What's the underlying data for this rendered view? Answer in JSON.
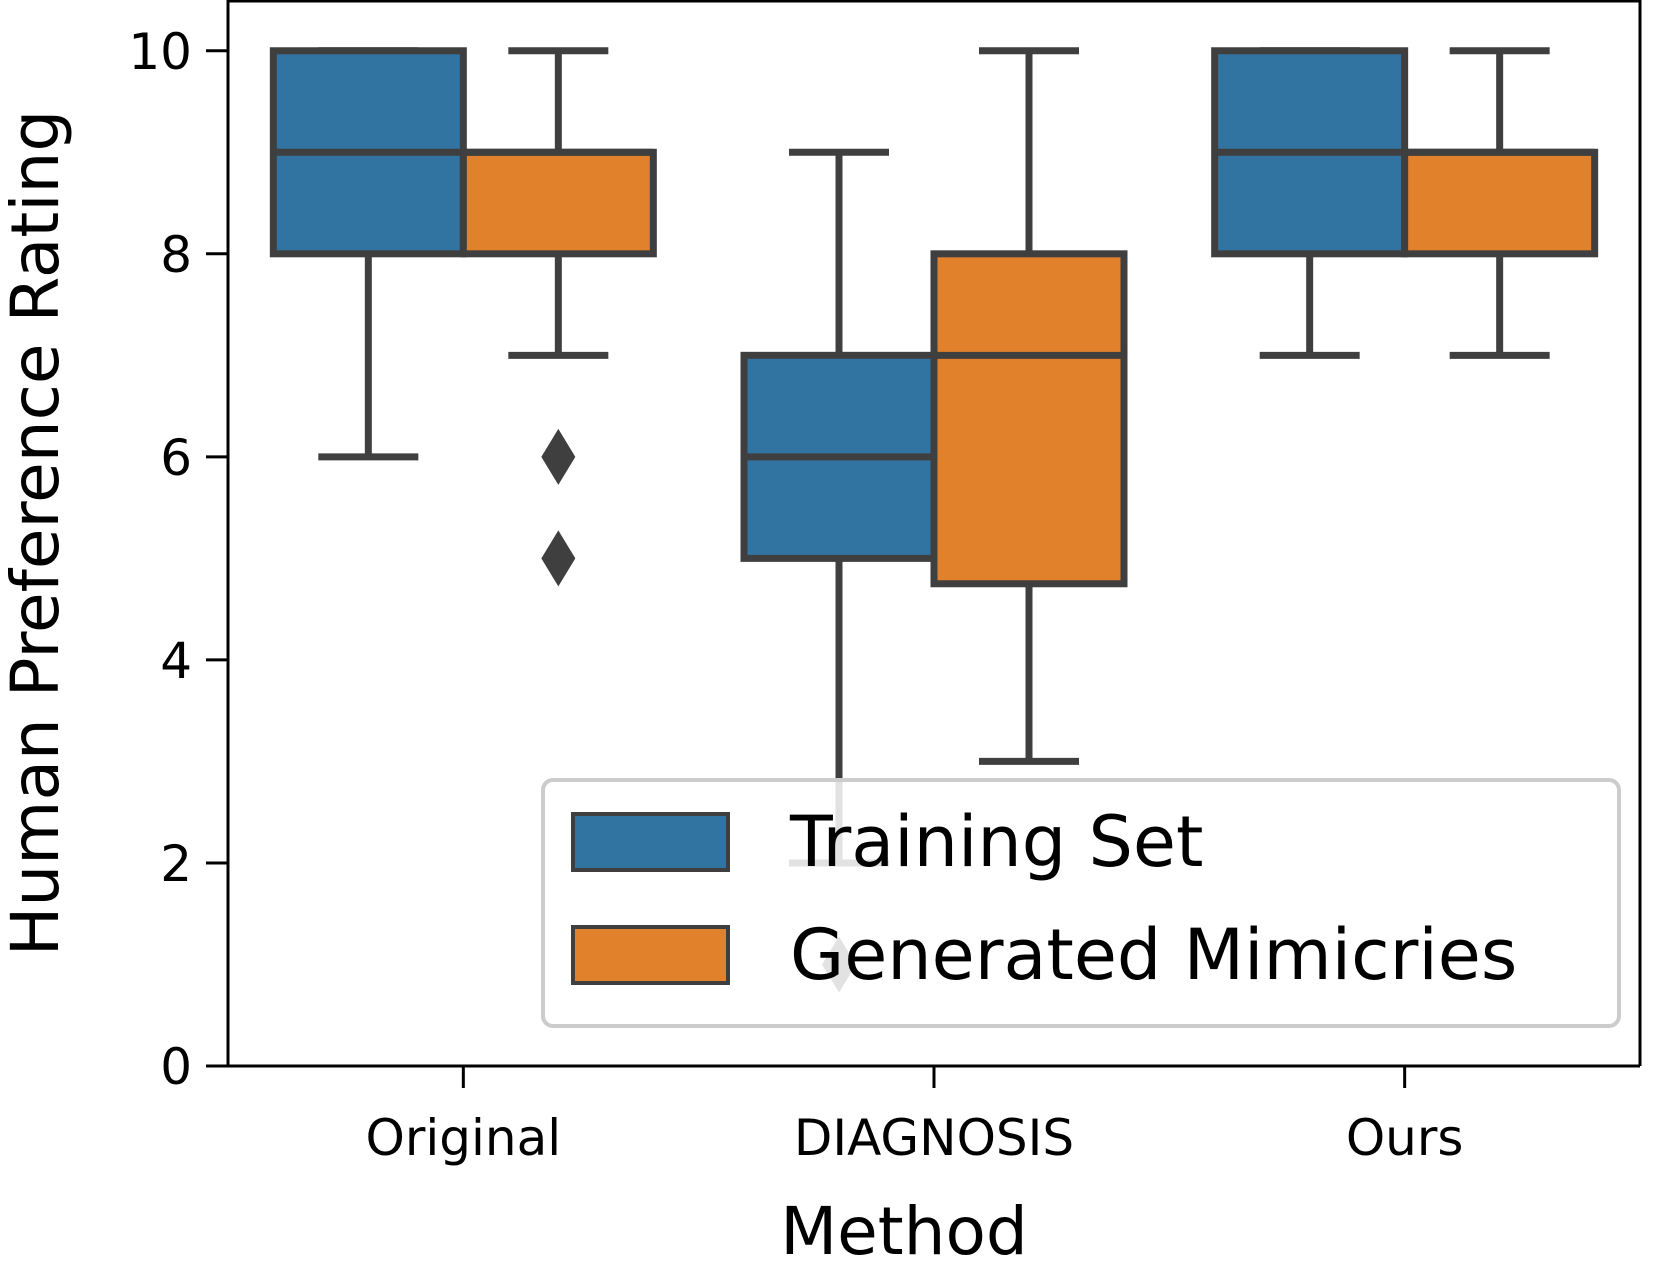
{
  "chart_data": {
    "type": "box",
    "title": "",
    "xlabel": "Method",
    "ylabel": "Human Preference Rating",
    "ylim": [
      0,
      10.5
    ],
    "yticks": [
      0,
      2,
      4,
      6,
      8,
      10
    ],
    "categories": [
      "Original",
      "DIAGNOSIS",
      "Ours"
    ],
    "grid": false,
    "legend_position": "lower-right",
    "series": [
      {
        "name": "Training Set",
        "color": "#3274a1",
        "boxes": [
          {
            "category": "Original",
            "whisker_low": 6,
            "q1": 8,
            "median": 9,
            "q3": 10,
            "whisker_high": 10,
            "outliers": []
          },
          {
            "category": "DIAGNOSIS",
            "whisker_low": 2,
            "q1": 5,
            "median": 6,
            "q3": 7,
            "whisker_high": 9,
            "outliers": [
              1
            ]
          },
          {
            "category": "Ours",
            "whisker_low": 7,
            "q1": 8,
            "median": 9,
            "q3": 10,
            "whisker_high": 10,
            "outliers": []
          }
        ]
      },
      {
        "name": "Generated Mimicries",
        "color": "#e1812c",
        "boxes": [
          {
            "category": "Original",
            "whisker_low": 7,
            "q1": 8,
            "median": 9,
            "q3": 9,
            "whisker_high": 10,
            "outliers": [
              6,
              5
            ]
          },
          {
            "category": "DIAGNOSIS",
            "whisker_low": 3,
            "q1": 4.75,
            "median": 7,
            "q3": 8,
            "whisker_high": 10,
            "outliers": []
          },
          {
            "category": "Ours",
            "whisker_low": 7,
            "q1": 8,
            "median": 9,
            "q3": 9,
            "whisker_high": 10,
            "outliers": []
          }
        ]
      }
    ],
    "line_color": "#3f3f3f"
  }
}
